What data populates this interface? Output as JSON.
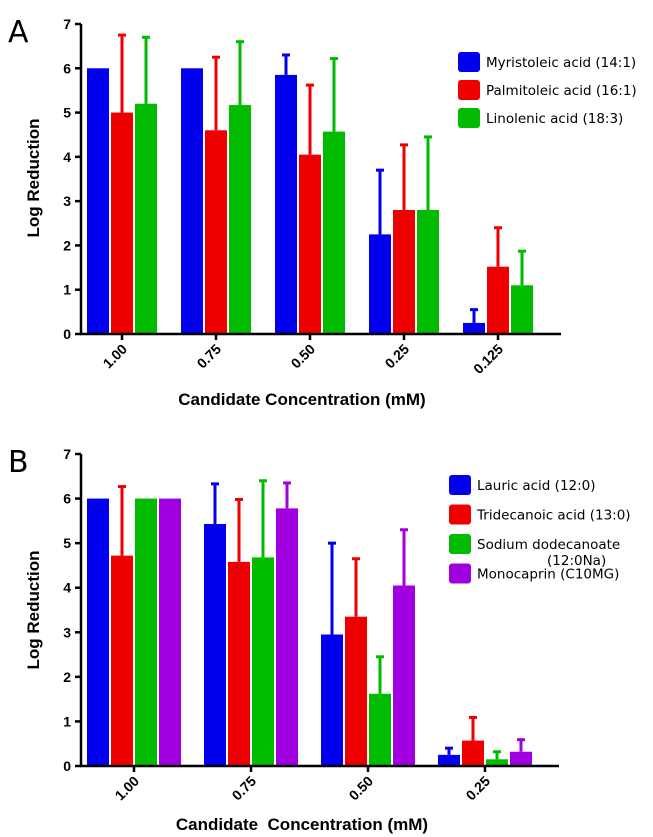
{
  "chart_data": [
    {
      "panel": "A",
      "type": "bar",
      "xlabel": "Candidate Concentration (mM)",
      "ylabel": "Log Reduction",
      "ylim": [
        0,
        7
      ],
      "yticks": [
        "0",
        "1",
        "2",
        "3",
        "4",
        "5",
        "6",
        "7"
      ],
      "categories": [
        "1.00",
        "0.75",
        "0.50",
        "0.25",
        "0.125"
      ],
      "legend_position": "top-right",
      "series": [
        {
          "name": "Myristoleic acid (14:1)",
          "color": "#0000ee",
          "values": [
            6.0,
            6.0,
            5.85,
            2.25,
            0.25
          ],
          "errors": [
            0,
            0,
            0.45,
            1.45,
            0.3
          ]
        },
        {
          "name": "Palmitoleic acid (16:1)",
          "color": "#ee0000",
          "values": [
            5.0,
            4.6,
            4.05,
            2.8,
            1.52
          ],
          "errors": [
            1.75,
            1.65,
            1.57,
            1.47,
            0.88
          ]
        },
        {
          "name": "Linolenic acid (18:3)",
          "color": "#00bb00",
          "values": [
            5.2,
            5.17,
            4.57,
            2.8,
            1.1
          ],
          "errors": [
            1.5,
            1.43,
            1.65,
            1.65,
            0.77
          ]
        }
      ]
    },
    {
      "panel": "B",
      "type": "bar",
      "xlabel": "Candidate  Concentration (mM)",
      "ylabel": "Log Reduction",
      "ylim": [
        0,
        7
      ],
      "yticks": [
        "0",
        "1",
        "2",
        "3",
        "4",
        "5",
        "6",
        "7"
      ],
      "categories": [
        "1.00",
        "0.75",
        "0.50",
        "0.25"
      ],
      "legend_position": "top-right",
      "series": [
        {
          "name": "Lauric acid (12:0)",
          "color": "#0000ee",
          "values": [
            6.0,
            5.43,
            2.95,
            0.25
          ],
          "errors": [
            0,
            0.9,
            2.05,
            0.15
          ]
        },
        {
          "name": "Tridecanoic acid (13:0)",
          "color": "#ee0000",
          "values": [
            4.72,
            4.58,
            3.35,
            0.57
          ],
          "errors": [
            1.55,
            1.4,
            1.3,
            0.52
          ]
        },
        {
          "name": "Sodium dodecanoate (12:0Na)",
          "name_lines": [
            "Sodium dodecanoate",
            "(12:0Na)"
          ],
          "color": "#00bb00",
          "values": [
            6.0,
            4.68,
            1.62,
            0.15
          ],
          "errors": [
            0,
            1.72,
            0.83,
            0.17
          ]
        },
        {
          "name": "Monocaprin (C10MG)",
          "color": "#a000e0",
          "values": [
            6.0,
            5.78,
            4.05,
            0.32
          ],
          "errors": [
            0,
            0.57,
            1.25,
            0.27
          ]
        }
      ]
    }
  ]
}
